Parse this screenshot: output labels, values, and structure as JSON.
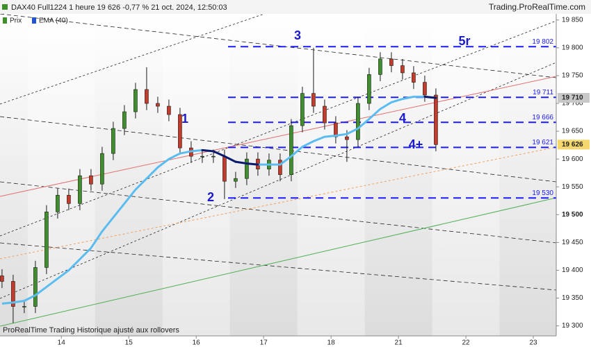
{
  "chart_data": {
    "type": "candlestick",
    "title": "DAX40 Full1224 1 heure 19 626 -0,77 % 21 oct. 2024, 12:50:03",
    "source": "Trading.ProRealTime.com",
    "footer": "ProRealTime Trading  Historique ajusté aux rollovers",
    "legend": [
      "Prix",
      "EMA (40)"
    ],
    "up_color": "#3f8f2a",
    "down_color": "#c63a2b",
    "ema_color": "#5bbcf0",
    "ema_down_color": "#0d1a6b",
    "level_color": "#1a1aff",
    "x": [
      -0.88,
      -0.715,
      -0.55,
      -0.385,
      -0.22,
      -0.055,
      0.11,
      0.275,
      0.44,
      0.605,
      0.77,
      0.935,
      1.1,
      1.265,
      1.43,
      1.595,
      1.76,
      1.925,
      2.09,
      2.255,
      2.42,
      2.585,
      2.75,
      2.915,
      3.08,
      3.245,
      3.41,
      3.575,
      3.74,
      3.905,
      4.07,
      4.235,
      4.4,
      4.565,
      4.73,
      4.895,
      5.06,
      5.225,
      5.39,
      5.555
    ],
    "open": [
      19390,
      19380,
      19335,
      19335,
      19405,
      19505,
      19535,
      19520,
      19570,
      19555,
      19610,
      19655,
      19685,
      19725,
      19700,
      19695,
      19680,
      19620,
      19605,
      19605,
      19605,
      19560,
      19565,
      19600,
      19582,
      19598,
      19572,
      19660,
      19718,
      19695,
      19665,
      19640,
      19635,
      19700,
      19752,
      19780,
      19768,
      19755,
      19738,
      19715
    ],
    "high": [
      19402,
      19392,
      19347,
      19417,
      19517,
      19547,
      19547,
      19582,
      19582,
      19622,
      19667,
      19697,
      19737,
      19765,
      19712,
      19707,
      19692,
      19632,
      19617,
      19617,
      19617,
      19577,
      19612,
      19612,
      19610,
      19610,
      19672,
      19730,
      19800,
      19707,
      19677,
      19652,
      19712,
      19764,
      19792,
      19792,
      19780,
      19767,
      19750,
      19727
    ],
    "low": [
      19368,
      19305,
      19323,
      19323,
      19393,
      19493,
      19508,
      19508,
      19543,
      19543,
      19598,
      19643,
      19673,
      19688,
      19683,
      19668,
      19608,
      19593,
      19593,
      19593,
      19528,
      19548,
      19553,
      19570,
      19570,
      19560,
      19560,
      19648,
      19683,
      19653,
      19628,
      19595,
      19623,
      19688,
      19740,
      19756,
      19743,
      19726,
      19703,
      19614
    ],
    "close": [
      19380,
      19335,
      19335,
      19405,
      19505,
      19535,
      19520,
      19570,
      19555,
      19610,
      19655,
      19685,
      19725,
      19700,
      19695,
      19680,
      19620,
      19605,
      19605,
      19605,
      19560,
      19565,
      19600,
      19582,
      19598,
      19572,
      19660,
      19718,
      19695,
      19665,
      19640,
      19635,
      19700,
      19752,
      19780,
      19768,
      19755,
      19738,
      19715,
      19626
    ],
    "ema": [
      19340,
      19342,
      19345,
      19355,
      19370,
      19385,
      19400,
      19420,
      19440,
      19470,
      19495,
      19520,
      19545,
      19565,
      19585,
      19600,
      19610,
      19614,
      19616,
      19614,
      19605,
      19595,
      19592,
      19590,
      19590,
      19590,
      19605,
      19622,
      19632,
      19640,
      19642,
      19645,
      19655,
      19672,
      19690,
      19702,
      19708,
      19712,
      19712,
      19710
    ],
    "levels": [
      {
        "value": 19802,
        "label": "19 802"
      },
      {
        "value": 19711,
        "label": "19 711"
      },
      {
        "value": 19666,
        "label": "19 666"
      },
      {
        "value": 19621,
        "label": "19 621"
      },
      {
        "value": 19530,
        "label": "19 530"
      }
    ],
    "annotations": [
      "1",
      "2",
      "3",
      "4",
      "4+",
      "5r"
    ],
    "price_tags": [
      {
        "value": 19710,
        "label": "19 710"
      },
      {
        "value": 19626,
        "label": "19 626"
      }
    ],
    "xlim": [
      -0.91,
      7.34
    ],
    "xticks": [
      {
        "value": 0,
        "label": "14"
      },
      {
        "value": 1,
        "label": "15"
      },
      {
        "value": 2,
        "label": "16"
      },
      {
        "value": 3,
        "label": "17"
      },
      {
        "value": 4,
        "label": "18"
      },
      {
        "value": 5,
        "label": "21"
      },
      {
        "value": 6,
        "label": "22"
      },
      {
        "value": 7,
        "label": "23"
      }
    ],
    "ylim": [
      19282,
      19861
    ],
    "yticks": [
      {
        "value": 19300,
        "label": "19 300"
      },
      {
        "value": 19350,
        "label": "19 350"
      },
      {
        "value": 19400,
        "label": "19 400"
      },
      {
        "value": 19450,
        "label": "19 450"
      },
      {
        "value": 19500,
        "label": "19 500"
      },
      {
        "value": 19550,
        "label": "19 550"
      },
      {
        "value": 19600,
        "label": "19 600"
      },
      {
        "value": 19650,
        "label": "19 650"
      },
      {
        "value": 19700,
        "label": "19 700"
      },
      {
        "value": 19750,
        "label": "19 750"
      },
      {
        "value": 19800,
        "label": "19 800"
      },
      {
        "value": 19850,
        "label": "19 850"
      }
    ]
  }
}
